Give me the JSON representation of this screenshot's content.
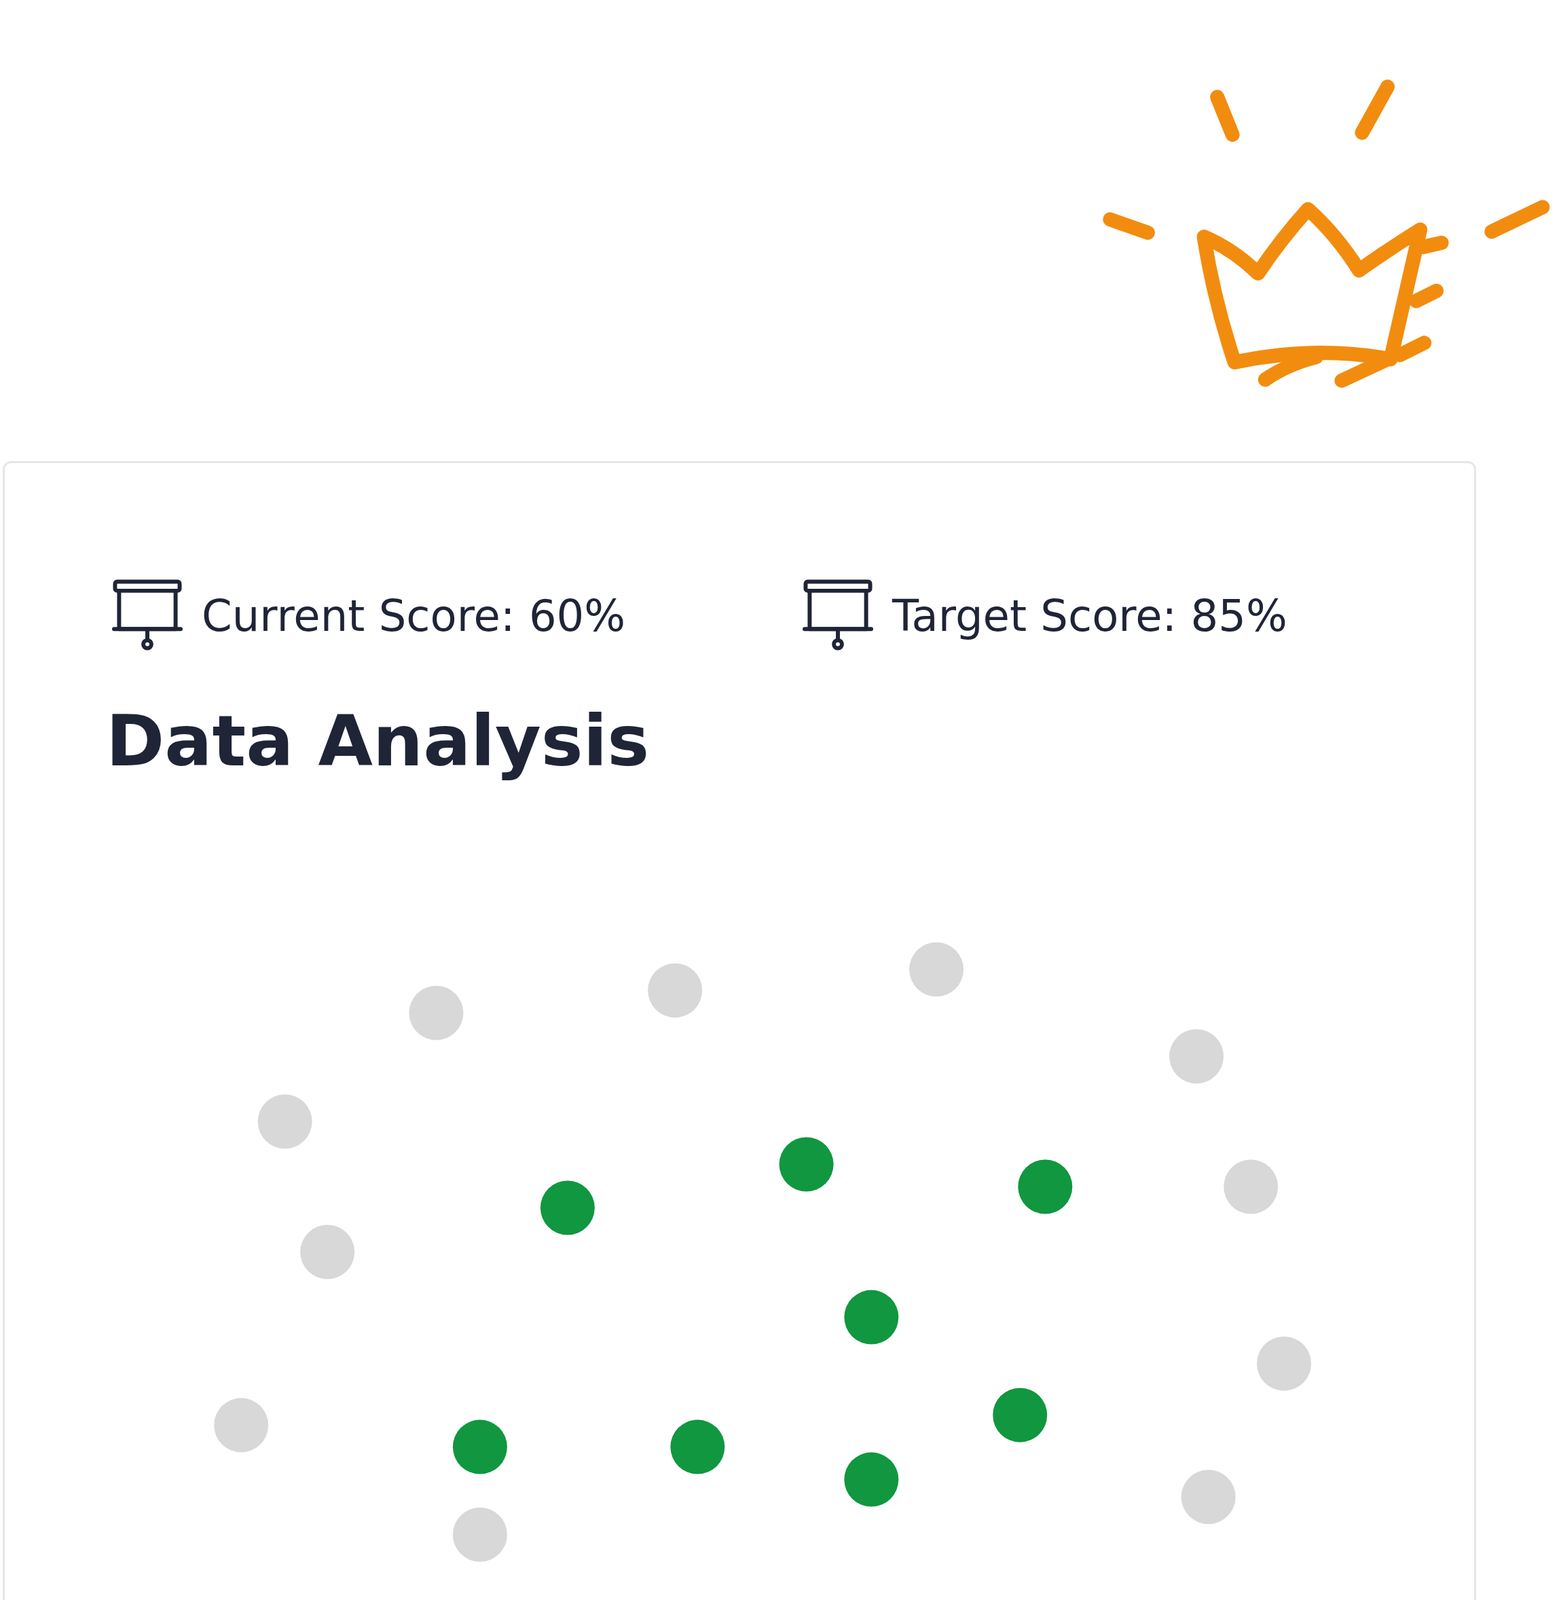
{
  "header": {
    "current_score": "Current Score: 60%",
    "target_score": "Target Score: 85%",
    "title": "Data Analysis"
  },
  "chart_data": {
    "type": "scatter",
    "marker": "circle",
    "tick_labels": false,
    "grid": false,
    "xlim": [
      0,
      100
    ],
    "ylim": [
      0,
      100
    ],
    "series": [
      {
        "color": "#d8d8d8",
        "x": [
          25.2,
          43.2,
          62.9,
          82.5,
          13.8,
          86.6,
          17.0,
          89.1,
          10.5,
          83.4,
          28.5
        ],
        "y": [
          79.9,
          83.0,
          85.9,
          73.9,
          64.9,
          55.9,
          46.9,
          31.5,
          23.0,
          13.1,
          7.9
        ]
      },
      {
        "color": "#10973f",
        "x": [
          35.1,
          53.1,
          71.1,
          58.0,
          28.5,
          44.9,
          58.0,
          69.2
        ],
        "y": [
          53.0,
          59.0,
          55.9,
          37.9,
          20.0,
          20.0,
          15.5,
          24.4
        ]
      }
    ]
  }
}
